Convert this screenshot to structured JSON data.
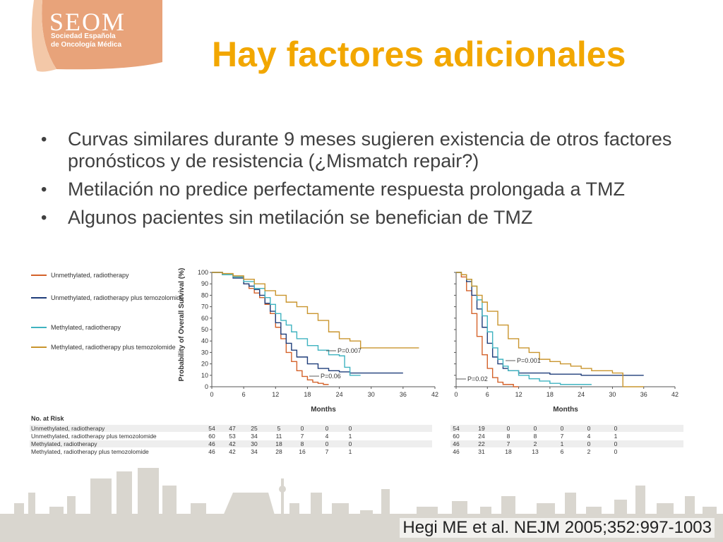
{
  "logo": {
    "name": "SEOM",
    "subtitle_line1": "Sociedad Española",
    "subtitle_line2": "de Oncología Médica"
  },
  "title": "Hay factores adicionales",
  "bullets": [
    "Curvas similares durante 9 meses sugieren existencia de otros factores pronósticos y de resistencia (¿Mismatch repair?)",
    "Metilación no predice perfectamente respuesta prolongada a TMZ",
    "Algunos pacientes sin metilación se benefician de TMZ"
  ],
  "citation": "Hegi ME et al. NEJM 2005;352:997-1003",
  "colors": {
    "title": "#f2a700",
    "unmethylated_rt": "#d4622a",
    "unmethylated_rt_tmz": "#1f3d7a",
    "methylated_rt": "#3fb3c0",
    "methylated_rt_tmz": "#c9952e"
  },
  "chart_data": [
    {
      "type": "line",
      "ylabel": "Probability of Overall Survival (%)",
      "xlabel": "Months",
      "xlim": [
        0,
        42
      ],
      "ylim": [
        0,
        100
      ],
      "xticks": [
        0,
        6,
        12,
        18,
        24,
        30,
        36,
        42
      ],
      "yticks": [
        0,
        10,
        20,
        30,
        40,
        50,
        60,
        70,
        80,
        90,
        100
      ],
      "legend": [
        "Unmethylated, radiotherapy",
        "Unmethylated, radiotherapy plus temozolomide",
        "Methylated, radiotherapy",
        "Methylated, radiotherapy plus temozolomide"
      ],
      "annotations": [
        "P=0.007",
        "P=0.06"
      ],
      "series": [
        {
          "name": "Unmethylated, radiotherapy",
          "color": "#d4622a",
          "x": [
            0,
            2,
            4,
            6,
            7,
            8,
            9,
            10,
            11,
            12,
            13,
            14,
            15,
            16,
            17,
            18,
            19,
            20,
            21,
            22
          ],
          "y": [
            100,
            98,
            96,
            90,
            86,
            82,
            78,
            72,
            64,
            52,
            42,
            30,
            22,
            14,
            9,
            6,
            4,
            3,
            2,
            2
          ]
        },
        {
          "name": "Unmethylated, radiotherapy plus temozolomide",
          "color": "#1f3d7a",
          "x": [
            0,
            2,
            4,
            6,
            7,
            8,
            9,
            10,
            11,
            12,
            13,
            14,
            15,
            16,
            18,
            20,
            22,
            24,
            26,
            28,
            30,
            36
          ],
          "y": [
            100,
            98,
            95,
            90,
            88,
            85,
            80,
            73,
            66,
            56,
            46,
            38,
            32,
            26,
            20,
            16,
            14,
            13,
            12,
            12,
            12,
            12
          ]
        },
        {
          "name": "Methylated, radiotherapy",
          "color": "#3fb3c0",
          "x": [
            0,
            2,
            4,
            6,
            8,
            10,
            11,
            12,
            13,
            14,
            15,
            16,
            18,
            20,
            22,
            24,
            25,
            26,
            27,
            28
          ],
          "y": [
            100,
            98,
            96,
            92,
            86,
            78,
            72,
            64,
            58,
            54,
            48,
            42,
            36,
            32,
            28,
            27,
            17,
            10,
            10,
            10
          ]
        },
        {
          "name": "Methylated, radiotherapy plus temozolomide",
          "color": "#c9952e",
          "x": [
            0,
            2,
            4,
            6,
            8,
            10,
            12,
            14,
            16,
            18,
            20,
            22,
            24,
            26,
            28,
            30,
            33,
            36,
            39
          ],
          "y": [
            100,
            99,
            97,
            94,
            90,
            84,
            80,
            74,
            70,
            64,
            58,
            48,
            42,
            40,
            34,
            34,
            34,
            34,
            34
          ]
        }
      ]
    },
    {
      "type": "line",
      "xlabel": "Months",
      "xlim": [
        0,
        42
      ],
      "ylim": [
        0,
        100
      ],
      "xticks": [
        0,
        6,
        12,
        18,
        24,
        30,
        36,
        42
      ],
      "annotations": [
        "P=0.001",
        "P=0.02"
      ],
      "series": [
        {
          "name": "Unmethylated, radiotherapy",
          "color": "#d4622a",
          "x": [
            0,
            1,
            2,
            3,
            4,
            5,
            6,
            7,
            8,
            9,
            10,
            11,
            12
          ],
          "y": [
            100,
            96,
            84,
            64,
            44,
            28,
            16,
            8,
            4,
            2,
            2,
            0,
            0
          ]
        },
        {
          "name": "Unmethylated, radiotherapy plus temozolomide",
          "color": "#1f3d7a",
          "x": [
            0,
            1,
            2,
            3,
            4,
            5,
            6,
            7,
            8,
            9,
            10,
            12,
            14,
            18,
            24,
            30,
            36
          ],
          "y": [
            100,
            98,
            92,
            80,
            68,
            52,
            38,
            26,
            20,
            16,
            14,
            12,
            12,
            11,
            10,
            10,
            10
          ]
        },
        {
          "name": "Methylated, radiotherapy",
          "color": "#3fb3c0",
          "x": [
            0,
            1,
            2,
            3,
            4,
            5,
            6,
            7,
            8,
            9,
            10,
            12,
            14,
            16,
            18,
            20,
            22,
            24,
            26
          ],
          "y": [
            100,
            98,
            94,
            88,
            76,
            62,
            48,
            34,
            24,
            18,
            14,
            10,
            7,
            5,
            3,
            2,
            2,
            2,
            2
          ]
        },
        {
          "name": "Methylated, radiotherapy plus temozolomide",
          "color": "#c9952e",
          "x": [
            0,
            1,
            2,
            3,
            4,
            5,
            6,
            8,
            10,
            12,
            14,
            16,
            18,
            20,
            22,
            24,
            26,
            28,
            30,
            32,
            36
          ],
          "y": [
            100,
            98,
            94,
            88,
            80,
            74,
            66,
            54,
            42,
            34,
            30,
            24,
            22,
            20,
            18,
            16,
            14,
            14,
            12,
            0,
            0
          ]
        }
      ]
    }
  ],
  "risk_table": {
    "header": "No. at Risk",
    "rows": [
      {
        "label": "Unmethylated, radiotherapy",
        "left": [
          "54",
          "47",
          "25",
          "5",
          "0",
          "0",
          "0"
        ],
        "right": [
          "54",
          "19",
          "0",
          "0",
          "0",
          "0",
          "0"
        ]
      },
      {
        "label": "Unmethylated, radiotherapy plus temozolomide",
        "left": [
          "60",
          "53",
          "34",
          "11",
          "7",
          "4",
          "1"
        ],
        "right": [
          "60",
          "24",
          "8",
          "8",
          "7",
          "4",
          "1"
        ]
      },
      {
        "label": "Methylated, radiotherapy",
        "left": [
          "46",
          "42",
          "30",
          "18",
          "8",
          "0",
          "0"
        ],
        "right": [
          "46",
          "22",
          "7",
          "2",
          "1",
          "0",
          "0"
        ]
      },
      {
        "label": "Methylated, radiotherapy plus temozolomide",
        "left": [
          "46",
          "42",
          "34",
          "28",
          "16",
          "7",
          "1"
        ],
        "right": [
          "46",
          "31",
          "18",
          "13",
          "6",
          "2",
          "0"
        ]
      }
    ]
  }
}
